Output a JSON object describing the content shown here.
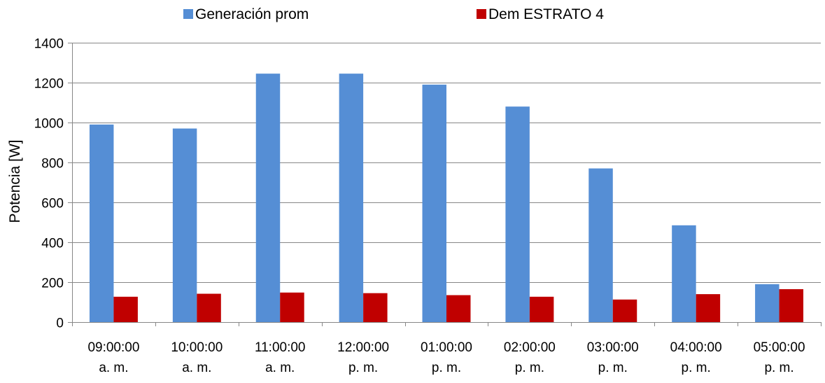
{
  "chart_data": {
    "type": "bar",
    "title": "",
    "xlabel": "",
    "ylabel": "Potencia [W]",
    "ylim": [
      0,
      1400
    ],
    "yticks": [
      0,
      200,
      400,
      600,
      800,
      1000,
      1200,
      1400
    ],
    "grid": true,
    "legend_position": "top",
    "categories": [
      [
        "09:00:00",
        "a. m."
      ],
      [
        "10:00:00",
        "a. m."
      ],
      [
        "11:00:00",
        "a. m."
      ],
      [
        "12:00:00",
        "p. m."
      ],
      [
        "01:00:00",
        "p. m."
      ],
      [
        "02:00:00",
        "p. m."
      ],
      [
        "03:00:00",
        "p. m."
      ],
      [
        "04:00:00",
        "p. m."
      ],
      [
        "05:00:00",
        "p. m."
      ]
    ],
    "series": [
      {
        "name": "Generación prom",
        "color": "#558ED5",
        "values": [
          990,
          970,
          1245,
          1245,
          1190,
          1080,
          770,
          485,
          190
        ]
      },
      {
        "name": "Dem ESTRATO 4",
        "color": "#C00000",
        "values": [
          127,
          142,
          148,
          145,
          135,
          127,
          113,
          140,
          165
        ]
      }
    ]
  }
}
